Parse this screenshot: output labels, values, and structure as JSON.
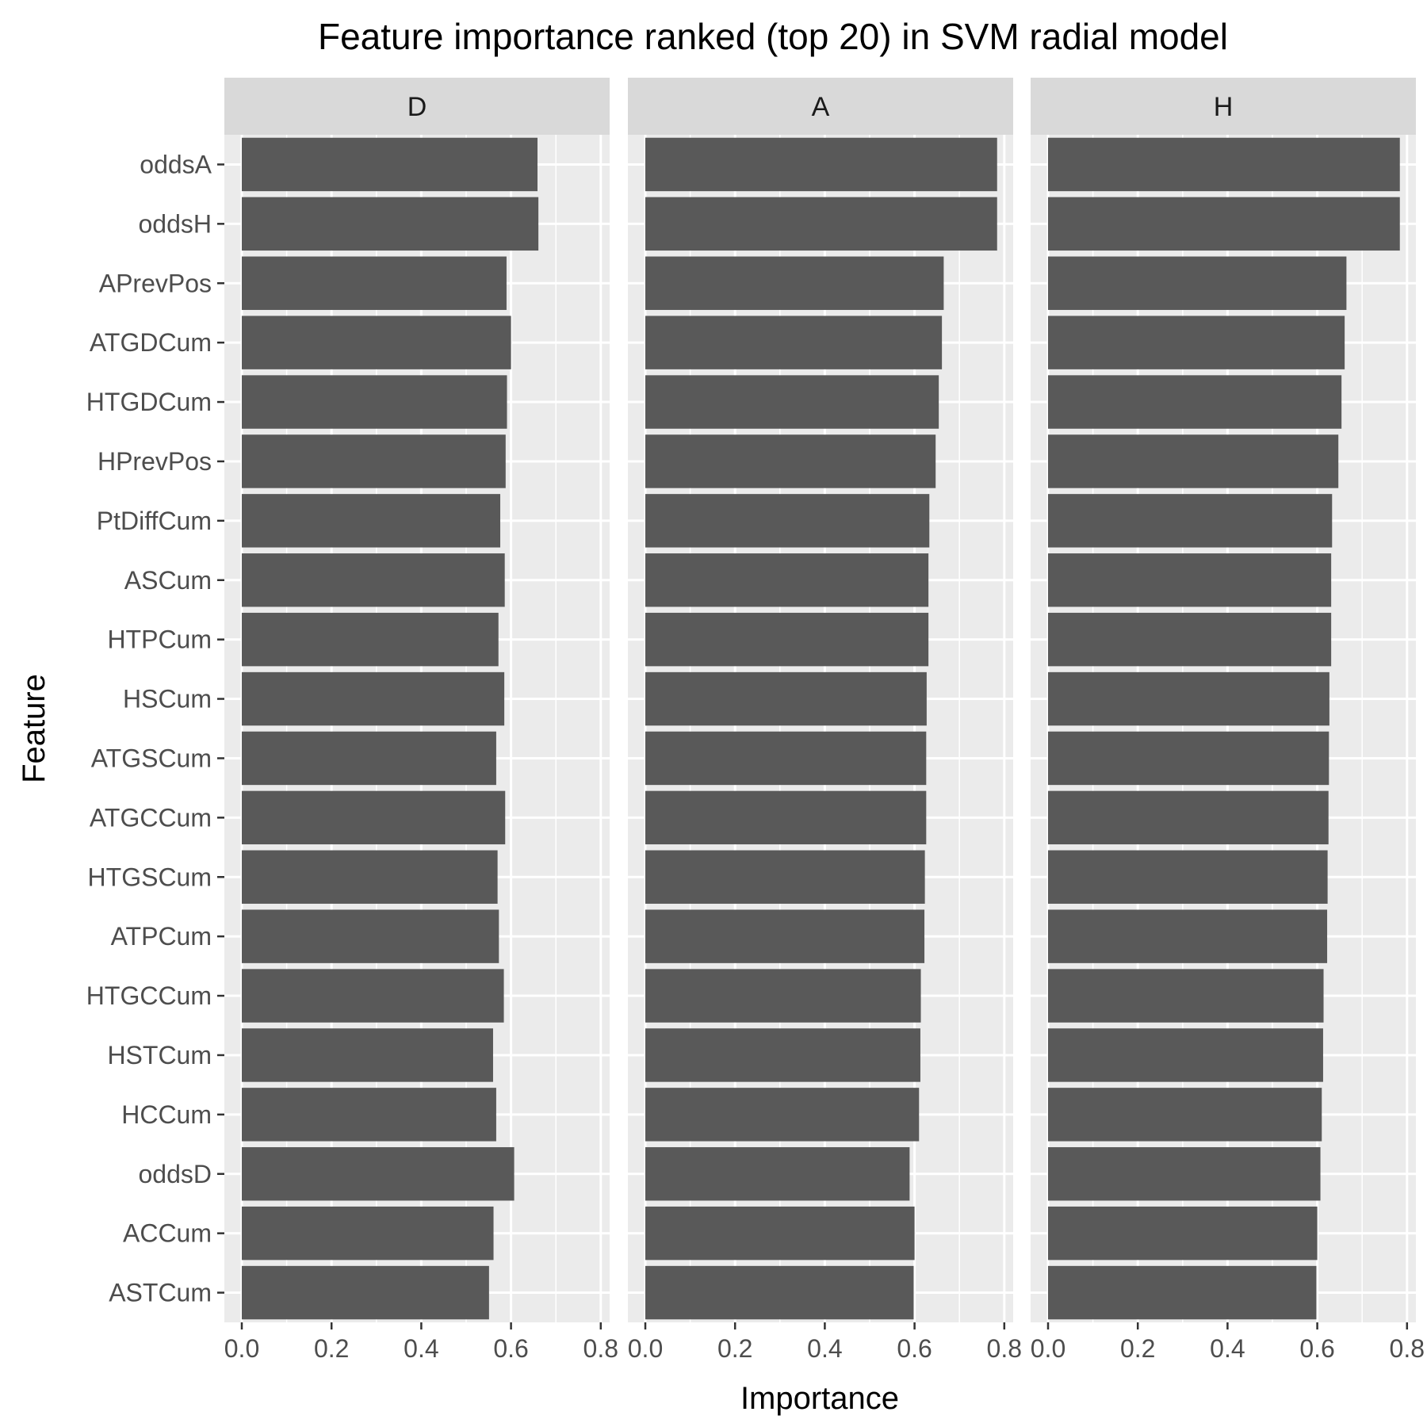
{
  "chart_data": {
    "type": "bar",
    "orientation": "horizontal",
    "title": "Feature importance ranked (top 20) in SVM radial model",
    "xlabel": "Importance",
    "ylabel": "Feature",
    "xlim": [
      0,
      0.82
    ],
    "x_ticks": [
      "0.0",
      "0.2",
      "0.4",
      "0.6",
      "0.8"
    ],
    "grid": true,
    "legend": "none",
    "bar_color": "#595959",
    "panel_background": "#ebebeb",
    "strip_background": "#d9d9d9",
    "categories": [
      "oddsA",
      "oddsH",
      "APrevPos",
      "ATGDCum",
      "HTGDCum",
      "HPrevPos",
      "PtDiffCum",
      "ASCum",
      "HTPCum",
      "HSCum",
      "ATGSCum",
      "ATGCCum",
      "HTGSCum",
      "ATPCum",
      "HTGCCum",
      "HSTCum",
      "HCCum",
      "oddsD",
      "ACCum",
      "ASTCum"
    ],
    "panels": [
      {
        "name": "D",
        "values": [
          0.659,
          0.661,
          0.59,
          0.6,
          0.591,
          0.588,
          0.576,
          0.586,
          0.572,
          0.585,
          0.567,
          0.587,
          0.57,
          0.573,
          0.584,
          0.56,
          0.567,
          0.607,
          0.561,
          0.551
        ]
      },
      {
        "name": "A",
        "values": [
          0.784,
          0.784,
          0.665,
          0.661,
          0.654,
          0.647,
          0.633,
          0.631,
          0.631,
          0.627,
          0.626,
          0.626,
          0.623,
          0.622,
          0.614,
          0.613,
          0.61,
          0.589,
          0.6,
          0.598
        ]
      },
      {
        "name": "H",
        "values": [
          0.784,
          0.784,
          0.665,
          0.661,
          0.654,
          0.647,
          0.633,
          0.631,
          0.631,
          0.627,
          0.626,
          0.625,
          0.623,
          0.622,
          0.614,
          0.613,
          0.61,
          0.607,
          0.6,
          0.598
        ]
      }
    ]
  }
}
